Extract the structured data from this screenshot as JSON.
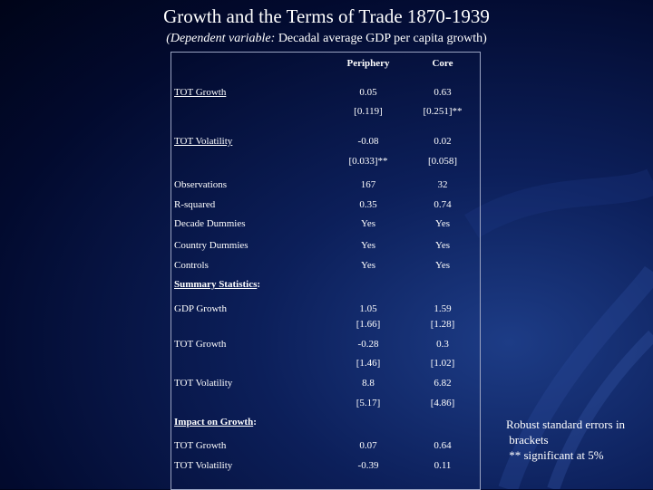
{
  "slide": {
    "title": "Growth and the Terms of Trade 1870-1939",
    "subtitle_italic": "(Dependent variable:",
    "subtitle_rest": " Decadal average GDP per capita growth)"
  },
  "table": {
    "headers": [
      "Periphery",
      "Core"
    ],
    "rows": [
      {
        "label": "TOT Growth",
        "v1": "0.05",
        "v2": "0.63"
      },
      {
        "label": "",
        "v1": "[0.119]",
        "v2": "[0.251]**"
      },
      {
        "label": "TOT Volatility",
        "v1": "-0.08",
        "v2": "0.02"
      },
      {
        "label": "",
        "v1": "[0.033]**",
        "v2": "[0.058]"
      },
      {
        "label": "Observations",
        "v1": "167",
        "v2": "32"
      },
      {
        "label": "R-squared",
        "v1": "0.35",
        "v2": "0.74"
      },
      {
        "label": "Decade Dummies",
        "v1": "Yes",
        "v2": "Yes"
      },
      {
        "label": "Country Dummies",
        "v1": "Yes",
        "v2": "Yes"
      },
      {
        "label": "Controls",
        "v1": "Yes",
        "v2": "Yes"
      },
      {
        "label": "Summary Statistics",
        "suffix": ":",
        "v1": "",
        "v2": ""
      },
      {
        "label": "GDP Growth",
        "v1": "1.05",
        "v2": "1.59"
      },
      {
        "label": "",
        "v1": "[1.66]",
        "v2": "[1.28]"
      },
      {
        "label": "TOT Growth",
        "v1": "-0.28",
        "v2": "0.3"
      },
      {
        "label": "",
        "v1": "[1.46]",
        "v2": "[1.02]"
      },
      {
        "label": "TOT Volatility",
        "v1": "8.8",
        "v2": "6.82"
      },
      {
        "label": "",
        "v1": "[5.17]",
        "v2": "[4.86]"
      },
      {
        "label": "Impact on Growth",
        "suffix": ":",
        "v1": "",
        "v2": ""
      },
      {
        "label": "TOT Growth",
        "v1": "0.07",
        "v2": "0.64"
      },
      {
        "label": "TOT Volatility",
        "v1": "-0.39",
        "v2": "0.11"
      }
    ]
  },
  "notes": [
    "Robust standard errors in",
    " brackets",
    " ** significant at 5%"
  ]
}
